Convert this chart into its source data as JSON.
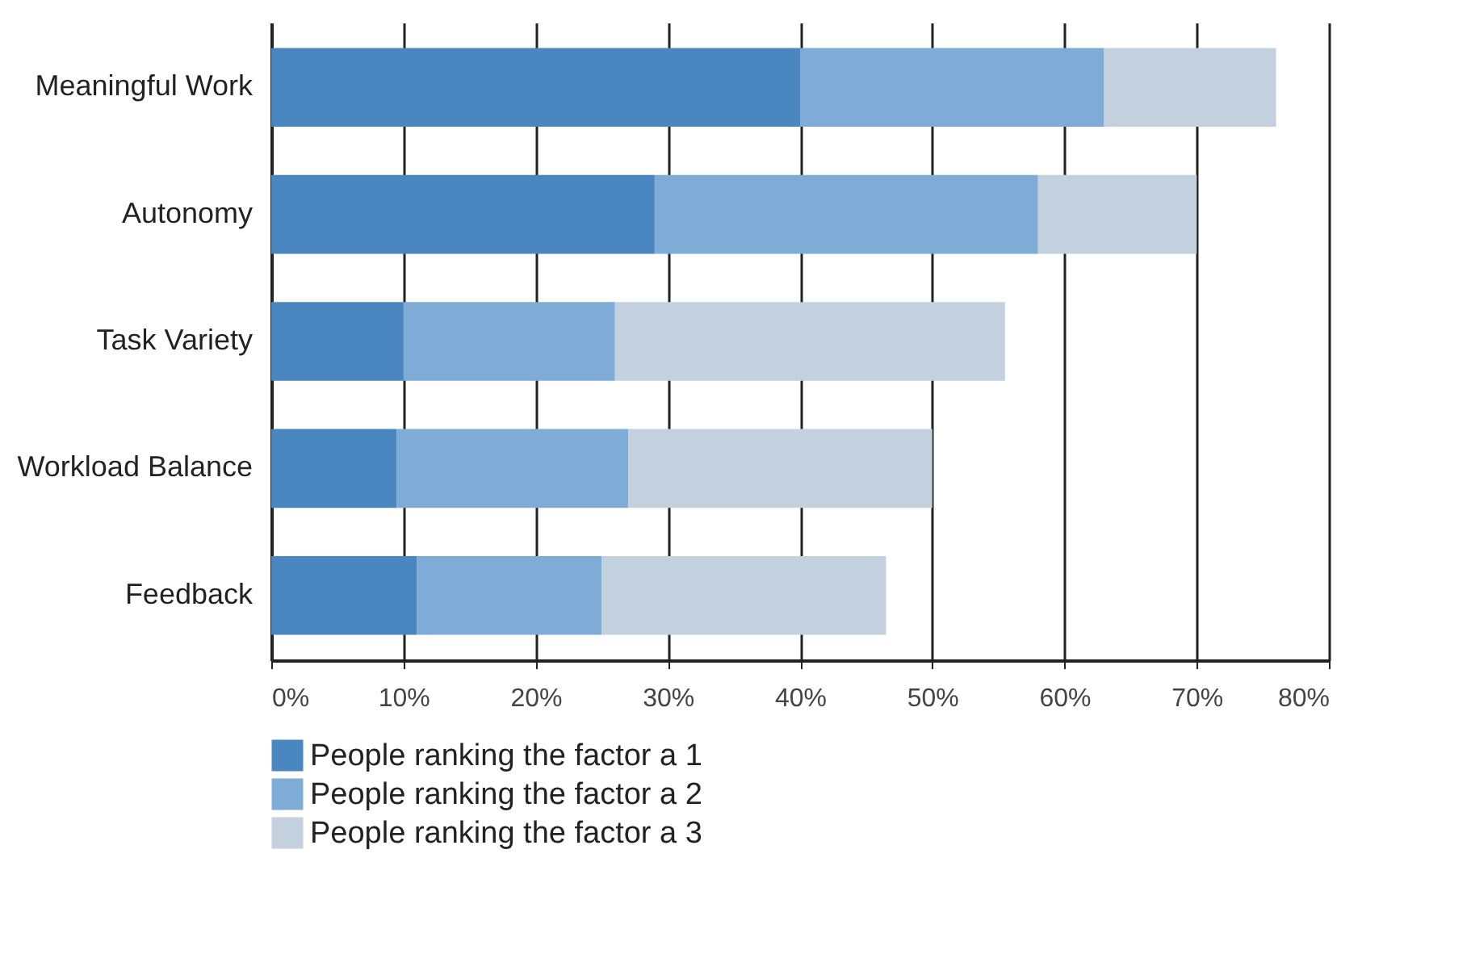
{
  "chart_data": {
    "type": "bar",
    "orientation": "horizontal",
    "stacked": true,
    "categories": [
      "Meaningful Work",
      "Autonomy",
      "Task Variety",
      "Workload Balance",
      "Feedback"
    ],
    "series": [
      {
        "name": "People ranking the factor a 1",
        "color": "#4a86bf",
        "values": [
          40,
          29,
          10,
          9.5,
          11
        ]
      },
      {
        "name": "People ranking the factor a 2",
        "color": "#7eacd6",
        "values": [
          23,
          29,
          16,
          17.5,
          14
        ]
      },
      {
        "name": "People ranking the factor a 3",
        "color": "#c3d0de",
        "values": [
          13,
          12,
          29.5,
          23,
          21.5
        ]
      }
    ],
    "xlim": [
      0,
      80
    ],
    "xticks": [
      {
        "value": 0,
        "label": "0%"
      },
      {
        "value": 10,
        "label": "10%"
      },
      {
        "value": 20,
        "label": "20%"
      },
      {
        "value": 30,
        "label": "30%"
      },
      {
        "value": 40,
        "label": "40%"
      },
      {
        "value": 50,
        "label": "50%"
      },
      {
        "value": 60,
        "label": "60%"
      },
      {
        "value": 70,
        "label": "70%"
      },
      {
        "value": 80,
        "label": "80%"
      }
    ],
    "grid": "x",
    "legend": "bottom"
  }
}
